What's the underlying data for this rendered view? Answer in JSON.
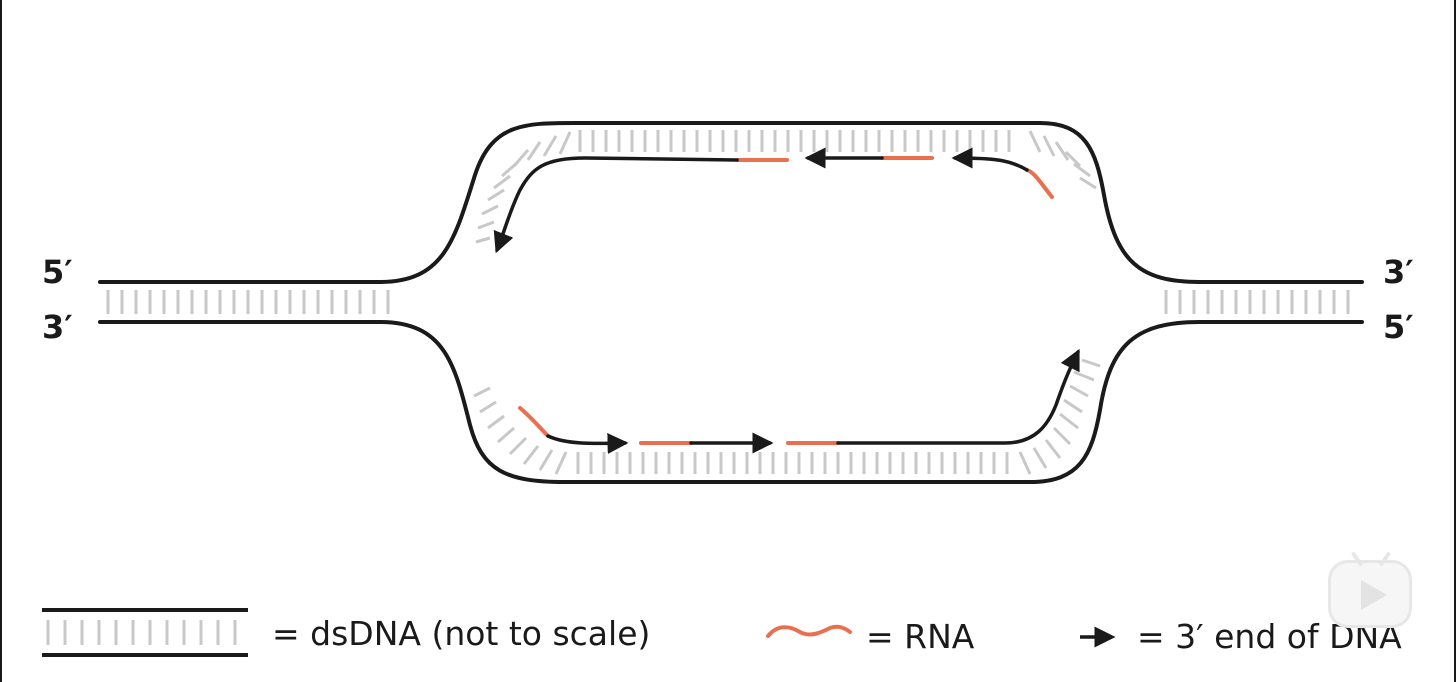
{
  "labels": {
    "left_top": "5′",
    "left_bottom": "3′",
    "right_top": "3′",
    "right_bottom": "5′"
  },
  "legend": {
    "dsdna": "= dsDNA (not to scale)",
    "rna": "= RNA",
    "three_prime_end": "= 3′ end of DNA"
  },
  "colors": {
    "strand": "#1a1a1a",
    "rung": "#c8c8c8",
    "rna": "#e8704e"
  }
}
